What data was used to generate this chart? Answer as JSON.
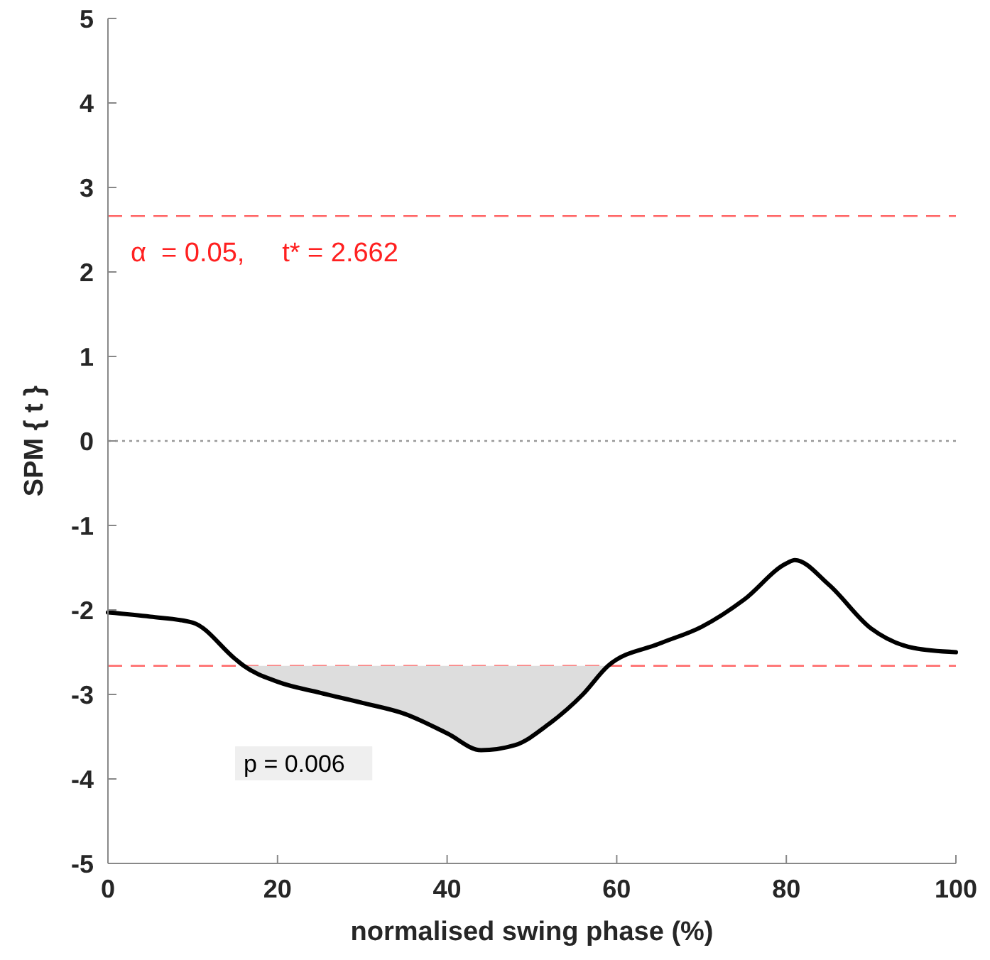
{
  "chart_data": {
    "type": "line",
    "xlabel": "normalised swing phase (%)",
    "ylabel": "SPM { t }",
    "x": [
      0,
      5,
      10,
      15,
      16,
      20,
      25,
      30,
      35,
      40,
      44,
      48,
      52,
      56,
      59,
      65,
      70,
      75,
      80,
      81,
      85,
      90,
      95,
      100
    ],
    "series": [
      {
        "values": [
          -2.03,
          -2.08,
          -2.15,
          -2.58,
          -2.66,
          -2.85,
          -2.98,
          -3.1,
          -3.23,
          -3.46,
          -3.66,
          -3.6,
          -3.35,
          -3.0,
          -2.66,
          -2.4,
          -2.2,
          -1.88,
          -1.45,
          -1.41,
          -1.7,
          -2.22,
          -2.45,
          -2.5
        ],
        "lower": [
          null,
          null,
          null,
          null,
          -2.66,
          -2.85,
          -2.98,
          -3.1,
          -3.23,
          -3.46,
          -3.66,
          -3.6,
          -3.35,
          -3.0,
          -2.66,
          null,
          null,
          null,
          null,
          null,
          null,
          null,
          null,
          null
        ],
        "upper": [
          null,
          null,
          null,
          null,
          -2.662,
          -2.662,
          -2.662,
          -2.662,
          -2.662,
          -2.662,
          -2.662,
          -2.662,
          -2.662,
          -2.662,
          -2.662,
          null,
          null,
          null,
          null,
          null,
          null,
          null,
          null,
          null
        ],
        "color": "#000000"
      }
    ],
    "xlim": [
      0,
      100
    ],
    "xticks": [
      0,
      20,
      40,
      60,
      80,
      100
    ],
    "ylim": [
      -5,
      5
    ],
    "yticks": [
      -5,
      -4,
      -3,
      -2,
      -1,
      0,
      1,
      2,
      3,
      4,
      5
    ],
    "ref_lines": [
      {
        "axis": "y",
        "value": 2.662,
        "color": "#ff6666",
        "line_style": "dashed",
        "label": "α  = 0.05,     t* = 2.662"
      },
      {
        "axis": "y",
        "value": -2.662,
        "color": "#ff6666",
        "line_style": "dashed"
      },
      {
        "axis": "y",
        "value": 0,
        "color": "#999999",
        "line_style": "dotted"
      }
    ],
    "annotations": [
      "p = 0.006"
    ],
    "grid": false,
    "marker": "none",
    "line_style": "solid"
  }
}
